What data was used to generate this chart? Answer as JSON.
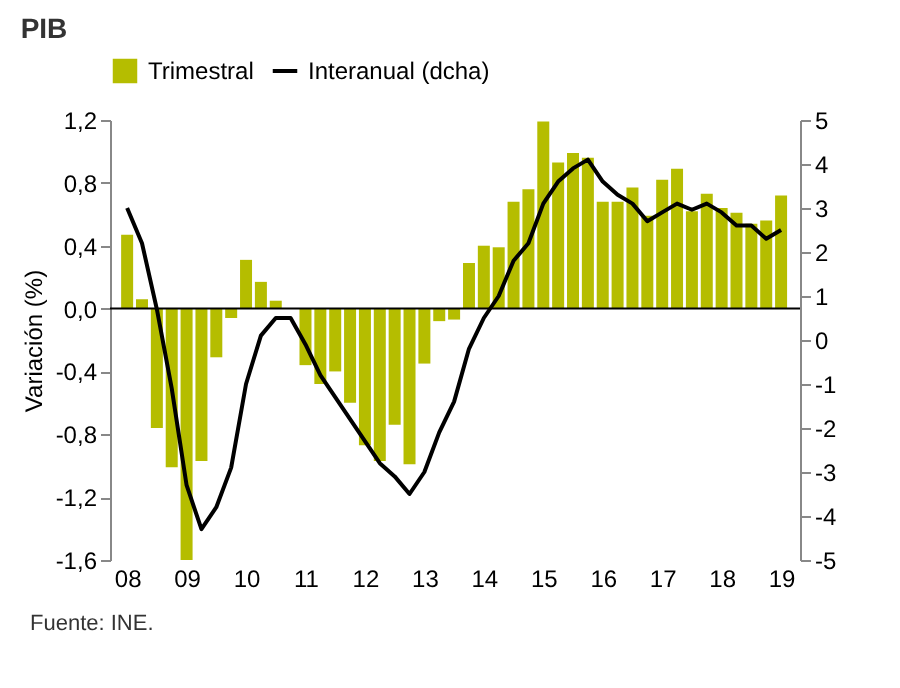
{
  "chart_data": {
    "type": "bar",
    "title": "PIB",
    "ylabel": "Variación (%)",
    "x": [
      2008,
      2008.25,
      2008.5,
      2008.75,
      2009,
      2009.25,
      2009.5,
      2009.75,
      2010,
      2010.25,
      2010.5,
      2010.75,
      2011,
      2011.25,
      2011.5,
      2011.75,
      2012,
      2012.25,
      2012.5,
      2012.75,
      2013,
      2013.25,
      2013.5,
      2013.75,
      2014,
      2014.25,
      2014.5,
      2014.75,
      2015,
      2015.25,
      2015.5,
      2015.75,
      2016,
      2016.25,
      2016.5,
      2016.75,
      2017,
      2017.25,
      2017.5,
      2017.75,
      2018,
      2018.25,
      2018.5,
      2018.75,
      2019
    ],
    "series": [
      {
        "name": "Trimestral",
        "color": "#b5bd00",
        "values": [
          0.47,
          0.06,
          -0.76,
          -1.01,
          -1.6,
          -0.97,
          -0.31,
          -0.06,
          0.31,
          0.17,
          0.05,
          0.0,
          -0.36,
          -0.48,
          -0.4,
          -0.6,
          -0.87,
          -0.97,
          -0.74,
          -0.99,
          -0.35,
          -0.08,
          -0.07,
          0.29,
          0.4,
          0.39,
          0.68,
          0.76,
          1.19,
          0.93,
          0.99,
          0.96,
          0.68,
          0.68,
          0.77,
          0.59,
          0.82,
          0.89,
          0.62,
          0.73,
          0.64,
          0.61,
          0.54,
          0.56,
          0.72
        ]
      },
      {
        "name": "Interanual (dcha)",
        "type": "line",
        "axis": "y2",
        "color": "#000000",
        "values": [
          3.0,
          2.2,
          0.7,
          -1.1,
          -3.3,
          -4.3,
          -3.8,
          -2.9,
          -1.0,
          0.1,
          0.5,
          0.5,
          -0.1,
          -0.8,
          -1.3,
          -1.8,
          -2.3,
          -2.8,
          -3.1,
          -3.5,
          -3.0,
          -2.1,
          -1.4,
          -0.2,
          0.5,
          1.0,
          1.8,
          2.2,
          3.1,
          3.6,
          3.9,
          4.1,
          3.6,
          3.3,
          3.1,
          2.7,
          2.9,
          3.1,
          2.96,
          3.1,
          2.9,
          2.6,
          2.6,
          2.3,
          2.5
        ]
      }
    ],
    "xlim": [
      2007.88,
      2019.15
    ],
    "xticks": [
      {
        "value": 2008,
        "label": "08"
      },
      {
        "value": 2009,
        "label": "09"
      },
      {
        "value": 2010,
        "label": "10"
      },
      {
        "value": 2011,
        "label": "11"
      },
      {
        "value": 2012,
        "label": "12"
      },
      {
        "value": 2013,
        "label": "13"
      },
      {
        "value": 2014,
        "label": "14"
      },
      {
        "value": 2015,
        "label": "15"
      },
      {
        "value": 2016,
        "label": "16"
      },
      {
        "value": 2017,
        "label": "17"
      },
      {
        "value": 2018,
        "label": "18"
      },
      {
        "value": 2019,
        "label": "19"
      }
    ],
    "ylim": [
      -1.6,
      1.2
    ],
    "yticks": [
      {
        "value": -1.6,
        "label": "-1,6"
      },
      {
        "value": -1.2,
        "label": "-1,2"
      },
      {
        "value": -0.8,
        "label": "-0,8"
      },
      {
        "value": -0.4,
        "label": "-0,4"
      },
      {
        "value": 0,
        "label": "0,0"
      },
      {
        "value": 0.4,
        "label": "0,4"
      },
      {
        "value": 0.8,
        "label": "0,8"
      },
      {
        "value": 1.2,
        "label": "1,2"
      }
    ],
    "y2lim": [
      -5,
      5
    ],
    "y2ticks": [
      -5,
      -4,
      -3,
      -2,
      -1,
      0,
      1,
      2,
      3,
      4,
      5
    ],
    "ref_lines": [
      {
        "axis": "y",
        "value": 0,
        "color": "#000000"
      }
    ],
    "legend": "top",
    "annotations": [
      "Fuente: INE."
    ]
  }
}
